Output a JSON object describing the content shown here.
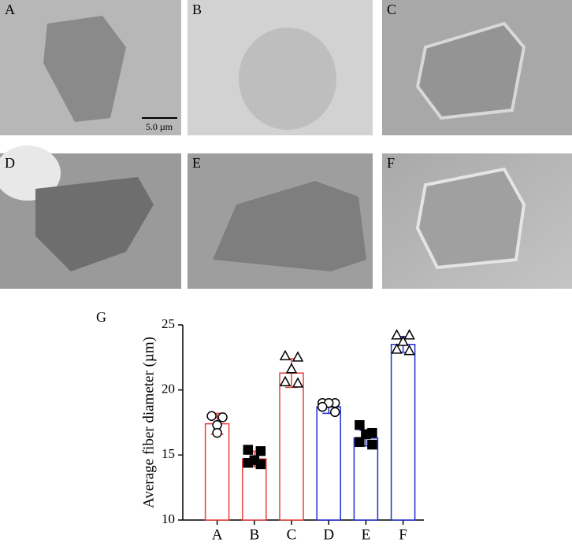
{
  "images": {
    "labels": [
      "A",
      "B",
      "C",
      "D",
      "E",
      "F"
    ],
    "scale_bar": "5.0 µm"
  },
  "chart_data": {
    "type": "bar",
    "panel_label": "G",
    "y_label": "Average fiber diameter (µm)",
    "categories": [
      "A",
      "B",
      "C",
      "D",
      "E",
      "F"
    ],
    "values": [
      17.4,
      14.7,
      21.3,
      18.7,
      16.3,
      23.5
    ],
    "errors": [
      0.8,
      0.6,
      1.1,
      0.5,
      0.6,
      0.6
    ],
    "colors": [
      "#e8413c",
      "#e8413c",
      "#e8413c",
      "#1f2fd0",
      "#1f2fd0",
      "#1f2fd0"
    ],
    "markers": [
      "circle",
      "square",
      "triangle",
      "circle",
      "square",
      "triangle"
    ],
    "points": [
      [
        18.0,
        17.9,
        17.3,
        16.7
      ],
      [
        15.4,
        15.3,
        14.6,
        14.4,
        14.3
      ],
      [
        22.6,
        22.5,
        21.6,
        20.6,
        20.5
      ],
      [
        19.0,
        19.0,
        19.0,
        18.7,
        18.3
      ],
      [
        17.3,
        16.7,
        16.6,
        16.0,
        15.8
      ],
      [
        24.2,
        24.2,
        23.7,
        23.1,
        23.0
      ]
    ],
    "ylim": [
      10,
      25
    ],
    "yticks": [
      10,
      15,
      20,
      25
    ]
  }
}
